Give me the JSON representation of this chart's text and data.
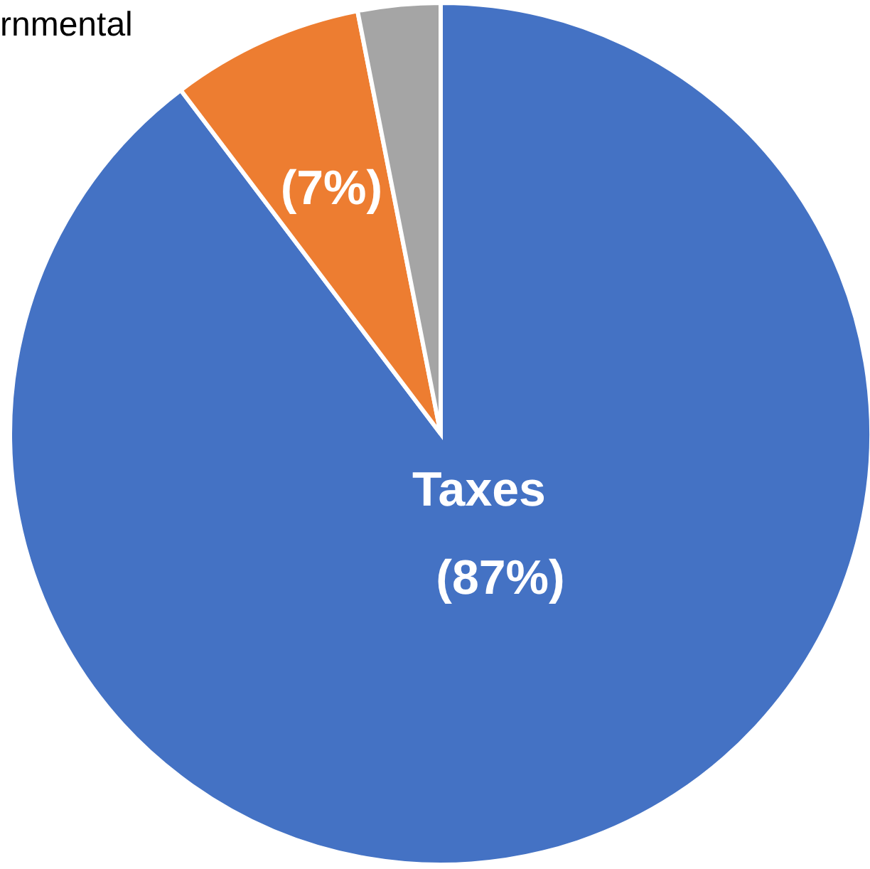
{
  "chart_data": {
    "type": "pie",
    "categories": [
      "Taxes",
      null,
      null
    ],
    "values": [
      87,
      7,
      3
    ],
    "colors": [
      "#4472c4",
      "#ed7d31",
      "#a5a5a5"
    ],
    "value_labels": [
      "(87%)",
      "(7%)",
      null
    ],
    "annotations": [
      "rnmental"
    ],
    "legend": false
  }
}
